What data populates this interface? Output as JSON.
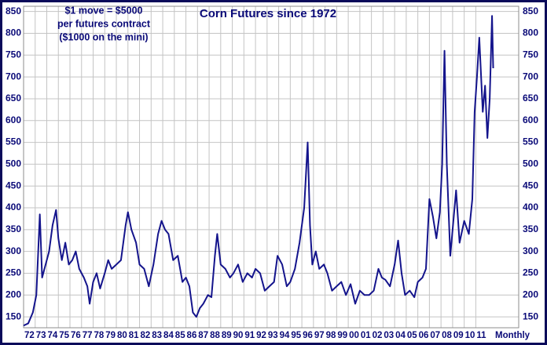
{
  "chart_data": {
    "type": "line",
    "title": "Corn Futures since 1972",
    "annotations": [
      "$1 move = $5000",
      "per futures contract",
      "($1000 on the mini)"
    ],
    "x_label": "Monthly",
    "color": "#14148c",
    "grid": true,
    "xlim": [
      1972,
      2014.7
    ],
    "ylim": [
      125,
      862
    ],
    "yticks": [
      150,
      200,
      250,
      300,
      350,
      400,
      450,
      500,
      550,
      600,
      650,
      700,
      750,
      800,
      850
    ],
    "xticks": [
      {
        "value": 1972,
        "label": "72"
      },
      {
        "value": 1973,
        "label": "73"
      },
      {
        "value": 1974,
        "label": "74"
      },
      {
        "value": 1975,
        "label": "75"
      },
      {
        "value": 1976,
        "label": "76"
      },
      {
        "value": 1977,
        "label": "77"
      },
      {
        "value": 1978,
        "label": "78"
      },
      {
        "value": 1979,
        "label": "79"
      },
      {
        "value": 1980,
        "label": "80"
      },
      {
        "value": 1981,
        "label": "81"
      },
      {
        "value": 1982,
        "label": "82"
      },
      {
        "value": 1983,
        "label": "83"
      },
      {
        "value": 1984,
        "label": "84"
      },
      {
        "value": 1985,
        "label": "85"
      },
      {
        "value": 1986,
        "label": "86"
      },
      {
        "value": 1987,
        "label": "87"
      },
      {
        "value": 1988,
        "label": "88"
      },
      {
        "value": 1989,
        "label": "89"
      },
      {
        "value": 1990,
        "label": "90"
      },
      {
        "value": 1991,
        "label": "91"
      },
      {
        "value": 1992,
        "label": "92"
      },
      {
        "value": 1993,
        "label": "93"
      },
      {
        "value": 1994,
        "label": "94"
      },
      {
        "value": 1995,
        "label": "95"
      },
      {
        "value": 1996,
        "label": "96"
      },
      {
        "value": 1997,
        "label": "97"
      },
      {
        "value": 1998,
        "label": "98"
      },
      {
        "value": 1999,
        "label": "99"
      },
      {
        "value": 2000,
        "label": "00"
      },
      {
        "value": 2001,
        "label": "01"
      },
      {
        "value": 2002,
        "label": "02"
      },
      {
        "value": 2003,
        "label": "03"
      },
      {
        "value": 2004,
        "label": "04"
      },
      {
        "value": 2005,
        "label": "05"
      },
      {
        "value": 2006,
        "label": "06"
      },
      {
        "value": 2007,
        "label": "07"
      },
      {
        "value": 2008,
        "label": "08"
      },
      {
        "value": 2009,
        "label": "09"
      },
      {
        "value": 2010,
        "label": "10"
      },
      {
        "value": 2011,
        "label": "11"
      }
    ],
    "x": [
      1972.0,
      1972.4,
      1972.8,
      1973.1,
      1973.4,
      1973.6,
      1973.9,
      1974.2,
      1974.5,
      1974.8,
      1975.0,
      1975.3,
      1975.6,
      1975.9,
      1976.2,
      1976.5,
      1976.8,
      1977.2,
      1977.5,
      1977.7,
      1978.0,
      1978.3,
      1978.6,
      1979.0,
      1979.3,
      1979.6,
      1980.0,
      1980.4,
      1980.8,
      1981.0,
      1981.3,
      1981.7,
      1982.0,
      1982.4,
      1982.8,
      1983.2,
      1983.6,
      1983.9,
      1984.2,
      1984.5,
      1984.9,
      1985.3,
      1985.7,
      1986.0,
      1986.3,
      1986.6,
      1986.9,
      1987.2,
      1987.5,
      1987.9,
      1988.2,
      1988.5,
      1988.7,
      1989.0,
      1989.4,
      1989.8,
      1990.1,
      1990.5,
      1990.9,
      1991.3,
      1991.7,
      1992.0,
      1992.4,
      1992.8,
      1993.2,
      1993.6,
      1993.9,
      1994.3,
      1994.7,
      1995.0,
      1995.4,
      1995.8,
      1996.2,
      1996.5,
      1996.7,
      1996.9,
      1997.2,
      1997.5,
      1997.9,
      1998.2,
      1998.6,
      1999.0,
      1999.4,
      1999.8,
      2000.2,
      2000.6,
      2001.0,
      2001.4,
      2001.8,
      2002.2,
      2002.6,
      2002.9,
      2003.2,
      2003.6,
      2004.0,
      2004.3,
      2004.6,
      2004.9,
      2005.3,
      2005.7,
      2006.0,
      2006.4,
      2006.7,
      2007.0,
      2007.3,
      2007.6,
      2007.9,
      2008.1,
      2008.3,
      2008.5,
      2008.8,
      2009.1,
      2009.3,
      2009.6,
      2010.0,
      2010.4,
      2010.7,
      2010.9,
      2011.1,
      2011.3,
      2011.6,
      2011.8,
      2012.0,
      2012.2,
      2012.4,
      2012.5
    ],
    "values": [
      130,
      135,
      160,
      200,
      385,
      240,
      270,
      300,
      360,
      395,
      330,
      280,
      320,
      270,
      280,
      300,
      260,
      240,
      220,
      180,
      230,
      250,
      215,
      250,
      280,
      260,
      270,
      280,
      360,
      390,
      350,
      320,
      270,
      260,
      220,
      270,
      340,
      370,
      350,
      340,
      280,
      290,
      230,
      240,
      220,
      160,
      150,
      170,
      180,
      200,
      195,
      290,
      340,
      270,
      260,
      240,
      250,
      270,
      230,
      250,
      240,
      260,
      250,
      210,
      220,
      230,
      290,
      270,
      220,
      230,
      260,
      320,
      400,
      550,
      360,
      270,
      300,
      260,
      270,
      250,
      210,
      220,
      230,
      200,
      225,
      180,
      210,
      200,
      200,
      210,
      260,
      240,
      235,
      220,
      270,
      325,
      250,
      200,
      210,
      195,
      230,
      240,
      260,
      420,
      380,
      330,
      390,
      500,
      760,
      500,
      290,
      380,
      440,
      320,
      370,
      340,
      420,
      620,
      700,
      790,
      620,
      680,
      560,
      650,
      840,
      720
    ]
  }
}
